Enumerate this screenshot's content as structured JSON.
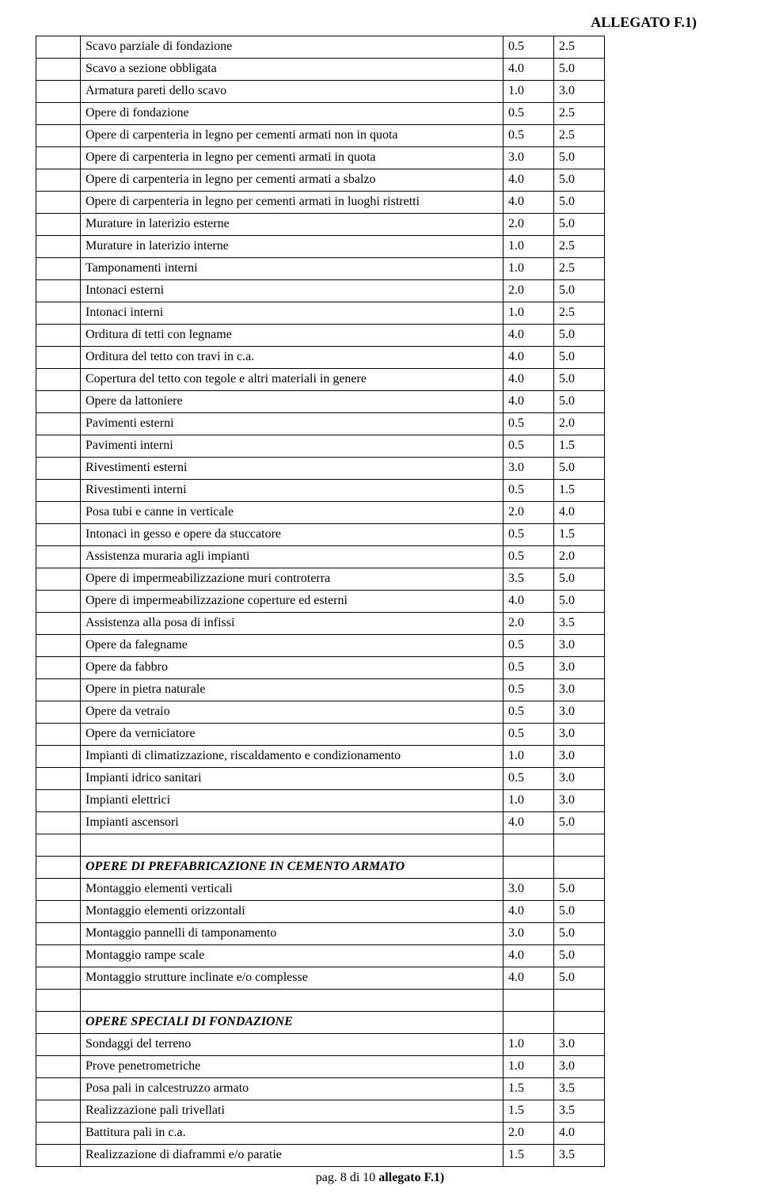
{
  "header": "ALLEGATO F.1)",
  "footer_prefix": "pag. 8 di 10 ",
  "footer_bold": "allegato F.1)",
  "rows": [
    {
      "label": "Scavo parziale di fondazione",
      "v1": "0.5",
      "v2": "2.5"
    },
    {
      "label": "Scavo a sezione obbligata",
      "v1": "4.0",
      "v2": "5.0"
    },
    {
      "label": "Armatura pareti dello scavo",
      "v1": "1.0",
      "v2": "3.0"
    },
    {
      "label": "Opere di fondazione",
      "v1": "0.5",
      "v2": "2.5"
    },
    {
      "label": "Opere di carpenteria in legno per cementi armati non in quota",
      "v1": "0.5",
      "v2": "2.5"
    },
    {
      "label": "Opere di carpenteria in legno per cementi armati in quota",
      "v1": "3.0",
      "v2": "5.0"
    },
    {
      "label": "Opere di carpenteria in legno per cementi armati a sbalzo",
      "v1": "4.0",
      "v2": "5.0"
    },
    {
      "label": "Opere di carpenteria in legno per cementi armati in luoghi ristretti",
      "v1": "4.0",
      "v2": "5.0"
    },
    {
      "label": "Murature in laterizio esterne",
      "v1": "2.0",
      "v2": "5.0"
    },
    {
      "label": "Murature in laterizio interne",
      "v1": "1.0",
      "v2": "2.5"
    },
    {
      "label": "Tamponamenti interni",
      "v1": "1.0",
      "v2": "2.5"
    },
    {
      "label": "Intonaci esterni",
      "v1": "2.0",
      "v2": "5.0"
    },
    {
      "label": "Intonaci interni",
      "v1": "1.0",
      "v2": "2.5"
    },
    {
      "label": "Orditura di tetti con legname",
      "v1": "4.0",
      "v2": "5.0"
    },
    {
      "label": "Orditura del tetto con travi in c.a.",
      "v1": "4.0",
      "v2": "5.0"
    },
    {
      "label": "Copertura del tetto con tegole e altri materiali in genere",
      "v1": "4.0",
      "v2": "5.0"
    },
    {
      "label": "Opere da lattoniere",
      "v1": "4.0",
      "v2": "5.0"
    },
    {
      "label": "Pavimenti esterni",
      "v1": "0.5",
      "v2": "2.0"
    },
    {
      "label": "Pavimenti interni",
      "v1": "0.5",
      "v2": "1.5"
    },
    {
      "label": "Rivestimenti esterni",
      "v1": "3.0",
      "v2": "5.0"
    },
    {
      "label": "Rivestimenti interni",
      "v1": "0.5",
      "v2": "1.5"
    },
    {
      "label": "Posa tubi e canne in verticale",
      "v1": "2.0",
      "v2": "4.0"
    },
    {
      "label": "Intonaci in gesso e opere da stuccatore",
      "v1": "0.5",
      "v2": "1.5"
    },
    {
      "label": "Assistenza muraria agli impianti",
      "v1": "0.5",
      "v2": "2.0"
    },
    {
      "label": "Opere di impermeabilizzazione muri controterra",
      "v1": "3.5",
      "v2": "5.0"
    },
    {
      "label": "Opere di impermeabilizzazione coperture ed esterni",
      "v1": "4.0",
      "v2": "5.0"
    },
    {
      "label": "Assistenza alla posa di infissi",
      "v1": "2.0",
      "v2": "3.5"
    },
    {
      "label": "Opere da falegname",
      "v1": "0.5",
      "v2": "3.0"
    },
    {
      "label": "Opere da fabbro",
      "v1": "0.5",
      "v2": "3.0"
    },
    {
      "label": "Opere in pietra naturale",
      "v1": "0.5",
      "v2": "3.0"
    },
    {
      "label": "Opere da vetraio",
      "v1": "0.5",
      "v2": "3.0"
    },
    {
      "label": "Opere da verniciatore",
      "v1": "0.5",
      "v2": "3.0"
    },
    {
      "label": "Impianti di climatizzazione, riscaldamento e condizionamento",
      "v1": "1.0",
      "v2": "3.0"
    },
    {
      "label": "Impianti idrico sanitari",
      "v1": "0.5",
      "v2": "3.0"
    },
    {
      "label": "Impianti elettrici",
      "v1": "1.0",
      "v2": "3.0"
    },
    {
      "label": "Impianti ascensori",
      "v1": "4.0",
      "v2": "5.0"
    },
    {
      "empty": true
    },
    {
      "section": "OPERE DI PREFABRICAZIONE IN CEMENTO ARMATO"
    },
    {
      "label": "Montaggio elementi verticali",
      "v1": "3.0",
      "v2": "5.0"
    },
    {
      "label": "Montaggio elementi orizzontali",
      "v1": "4.0",
      "v2": "5.0"
    },
    {
      "label": "Montaggio pannelli di tamponamento",
      "v1": "3.0",
      "v2": "5.0"
    },
    {
      "label": "Montaggio rampe scale",
      "v1": "4.0",
      "v2": "5.0"
    },
    {
      "label": "Montaggio strutture inclinate e/o complesse",
      "v1": "4.0",
      "v2": "5.0"
    },
    {
      "empty": true
    },
    {
      "section": "OPERE SPECIALI DI FONDAZIONE"
    },
    {
      "label": "Sondaggi del terreno",
      "v1": "1.0",
      "v2": "3.0"
    },
    {
      "label": "Prove penetrometriche",
      "v1": "1.0",
      "v2": "3.0"
    },
    {
      "label": "Posa pali in calcestruzzo armato",
      "v1": "1.5",
      "v2": "3.5"
    },
    {
      "label": "Realizzazione pali trivellati",
      "v1": "1.5",
      "v2": "3.5"
    },
    {
      "label": "Battitura pali in c.a.",
      "v1": "2.0",
      "v2": "4.0"
    },
    {
      "label": "Realizzazione di diaframmi e/o paratie",
      "v1": "1.5",
      "v2": "3.5"
    }
  ]
}
